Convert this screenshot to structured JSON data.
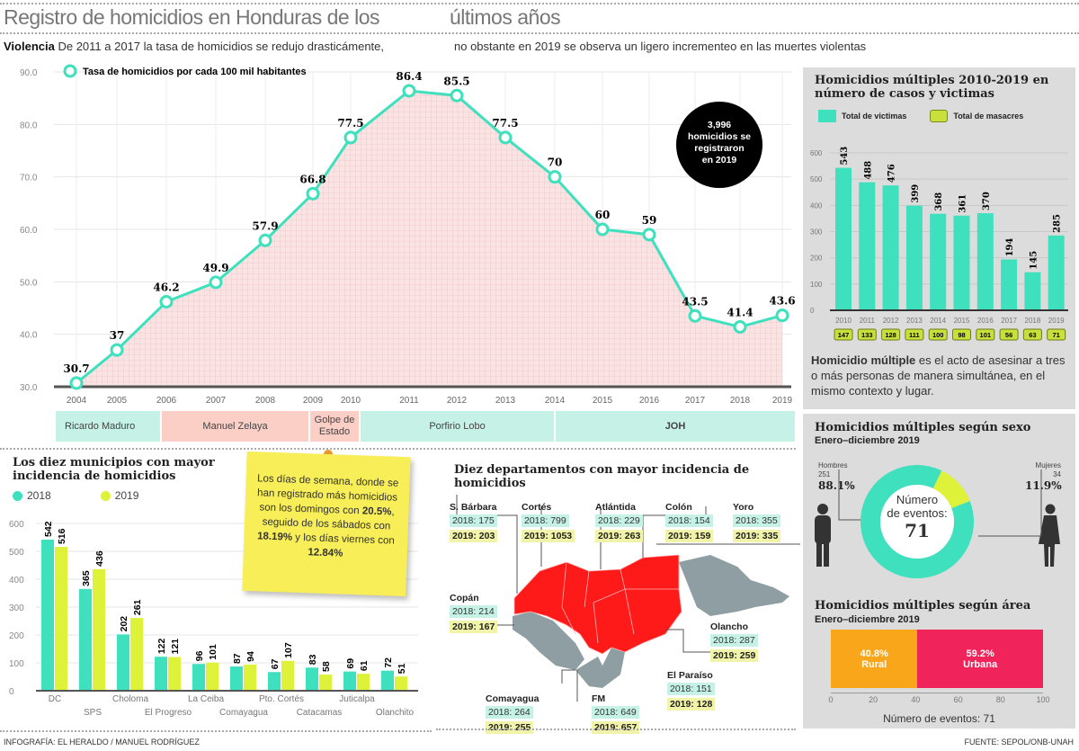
{
  "header": {
    "title_a": "Registro de homicidios en Honduras de los",
    "title_b": "últimos años",
    "lead_bold": "Violencia",
    "lead_a": "De 2011 a 2017 la tasa de homicidios se redujo drasticámente,",
    "lead_b": "no obstante en 2019 se observa un ligero incrementeo en las muertes violentas"
  },
  "callout": {
    "line1": "3,996",
    "line2": "homicidios se",
    "line3": "registraron",
    "line4": "en 2019"
  },
  "periods": [
    {
      "label": "Ricardo Maduro"
    },
    {
      "label": "Manuel Zelaya"
    },
    {
      "label": "Golpe de Estado"
    },
    {
      "label": "Porfirio Lobo"
    },
    {
      "label": "JOH"
    }
  ],
  "colors": {
    "teal": "#3ee0bd",
    "yellow": "#dff23a",
    "red": "#ff1a1a",
    "orange": "#f9a61a",
    "pink": "#f0245a",
    "masacre": "#a8c93a"
  },
  "chart_data": [
    {
      "type": "line",
      "legend": "Tasa de homicidios por cada 100 mil habitantes",
      "x": [
        "2004",
        "2005",
        "2006",
        "2007",
        "2008",
        "2009",
        "2010",
        "2011",
        "2012",
        "2013",
        "2014",
        "2015",
        "2016",
        "2017",
        "2018",
        "2019"
      ],
      "values": [
        30.7,
        37,
        46.2,
        49.9,
        57.9,
        66.8,
        77.5,
        86.4,
        85.5,
        77.5,
        70,
        60,
        59,
        43.5,
        41.4,
        43.6
      ],
      "data_labels": [
        "30.7",
        "37",
        "46.2",
        "49.9",
        "57.9",
        "66.8",
        "77.5",
        "86.4",
        "85.5",
        "77.5",
        "70",
        "60",
        "59",
        "43.5",
        "41.4",
        "43.6"
      ],
      "yticks": [
        "30.0",
        "40.0",
        "50.0",
        "60.0",
        "70.0",
        "80.0",
        "90.0"
      ],
      "ylim": [
        30,
        90
      ],
      "grid": true
    },
    {
      "type": "bar",
      "title": "Homicidios múltiples 2010-2019 en número de casos y victimas",
      "legend": [
        "Total de victimas",
        "Total de masacres"
      ],
      "categories": [
        "2010",
        "2011",
        "2012",
        "2013",
        "2014",
        "2015",
        "2016",
        "2017",
        "2018",
        "2019"
      ],
      "series": [
        {
          "name": "Total de victimas",
          "values": [
            543,
            488,
            476,
            399,
            368,
            361,
            370,
            194,
            145,
            285
          ]
        },
        {
          "name": "Total de masacres",
          "values": [
            147,
            133,
            128,
            111,
            100,
            98,
            101,
            56,
            63,
            71
          ]
        }
      ],
      "yticks": [
        "0",
        "100",
        "200",
        "300",
        "400",
        "500",
        "600"
      ],
      "ylim": [
        0,
        600
      ]
    },
    {
      "type": "bar",
      "title": "Los diez municipios con mayor incidencia de homicidios",
      "categories": [
        "DC",
        "SPS",
        "Choloma",
        "El Progreso",
        "La Ceiba",
        "Comayagua",
        "Pto. Cortés",
        "Catacamas",
        "Juticalpa",
        "Olanchito"
      ],
      "series": [
        {
          "name": "2018",
          "values": [
            542,
            365,
            202,
            122,
            96,
            87,
            67,
            83,
            69,
            72
          ]
        },
        {
          "name": "2019",
          "values": [
            516,
            436,
            261,
            121,
            101,
            94,
            107,
            58,
            61,
            51
          ]
        }
      ],
      "yticks": [
        "0",
        "100",
        "200",
        "300",
        "400",
        "500",
        "600"
      ],
      "ylim": [
        0,
        600
      ]
    },
    {
      "type": "pie",
      "title": "Homicidios múltiples según sexo",
      "subtitle": "Enero–diciembre 2019",
      "center_a": "Número",
      "center_b": "de eventos:",
      "center_value": "71",
      "slices": [
        {
          "name": "Hombres",
          "count": "251",
          "pct": 88.1,
          "pct_label": "88.1%"
        },
        {
          "name": "Mujeres",
          "count": "34",
          "pct": 11.9,
          "pct_label": "11.9%"
        }
      ]
    },
    {
      "type": "bar",
      "title": "Homicidios múltiples según área",
      "subtitle": "Enero–diciembre 2019",
      "stacked": true,
      "series": [
        {
          "name": "Rural",
          "value": 40.8,
          "label": "40.8%"
        },
        {
          "name": "Urbana",
          "value": 59.2,
          "label": "59.2%"
        }
      ],
      "xticks": [
        "0",
        "20",
        "40",
        "60",
        "80",
        "100"
      ],
      "xlabel": "Número de eventos: 71"
    }
  ],
  "definition": {
    "bold": "Homicidio múltiple",
    "text": "es el acto de asesinar a tres o más personas de manera simultánea, en el mismo contexto y lugar."
  },
  "sticky_note": {
    "a": "Los días de semana, donde se han registrado más homicidios son los domingos con ",
    "b": "20.5%",
    "c": ", seguido de los sábados con ",
    "d": "18.19%",
    "e": " y los días viernes con ",
    "f": "12.84%"
  },
  "map": {
    "title": "Diez departamentos con mayor incidencia de homicidios",
    "departments": [
      {
        "name": "S. Bárbara",
        "y2018": "2018: 175",
        "y2019": "2019: 203"
      },
      {
        "name": "Cortés",
        "y2018": "2018: 799",
        "y2019": "2019: 1053"
      },
      {
        "name": "Atlántida",
        "y2018": "2018: 229",
        "y2019": "2019: 263"
      },
      {
        "name": "Colón",
        "y2018": "2018: 154",
        "y2019": "2019: 159"
      },
      {
        "name": "Yoro",
        "y2018": "2018: 355",
        "y2019": "2019: 335"
      },
      {
        "name": "Copán",
        "y2018": "2018: 214",
        "y2019": "2019: 167"
      },
      {
        "name": "Olancho",
        "y2018": "2018: 287",
        "y2019": "2019: 259"
      },
      {
        "name": "El Paraíso",
        "y2018": "2018: 151",
        "y2019": "2019: 128"
      },
      {
        "name": "Comayagua",
        "y2018": "2018: 264",
        "y2019": "2019: 255"
      },
      {
        "name": "FM",
        "y2018": "2018: 649",
        "y2019": "2019: 657"
      }
    ]
  },
  "footer": {
    "credit": "INFOGRAFÍA: EL HERALDO / MANUEL RODRÍGUEZ",
    "source": "FUENTE: SEPOL/ONB-UNAH"
  }
}
